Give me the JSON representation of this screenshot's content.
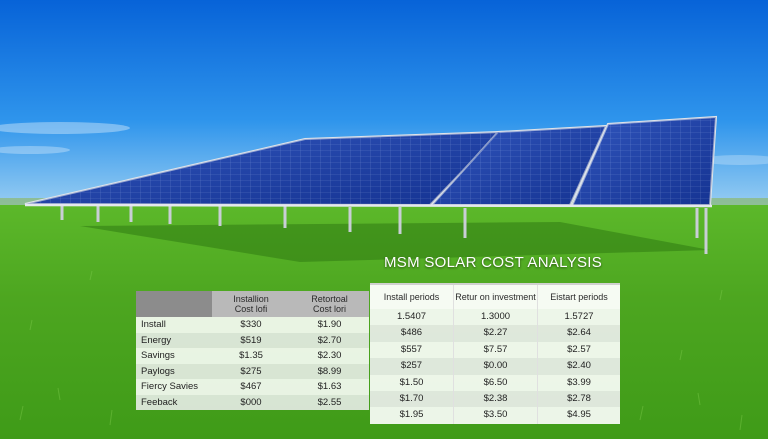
{
  "title": "MSM SOLAR COST ANALYSIS",
  "table_left": {
    "headers": [
      "",
      "Installion\nCost lofi",
      "Retortoal\nCost lori"
    ],
    "rows": [
      [
        "Install",
        "$330",
        "$1.90"
      ],
      [
        "Energy",
        "$519",
        "$2.70"
      ],
      [
        "Savings",
        "$1.35",
        "$2.30"
      ],
      [
        "Paylogs",
        "$275",
        "$8.99"
      ],
      [
        "Fiercy Savies",
        "$467",
        "$1.63"
      ],
      [
        "Feeback",
        "$000",
        "$2.55"
      ]
    ]
  },
  "table_right": {
    "headers": [
      "Install periods",
      "Retur on investment",
      "Eistart periods"
    ],
    "rows": [
      [
        "1.5407",
        "1.3000",
        "1.5727"
      ],
      [
        "$486",
        "$2.27",
        "$2.64"
      ],
      [
        "$557",
        "$7.57",
        "$2.57"
      ],
      [
        "$257",
        "$0.00",
        "$2.40"
      ],
      [
        "$1.50",
        "$6.50",
        "$3.99"
      ],
      [
        "$1.70",
        "$2.38",
        "$2.78"
      ],
      [
        "$1.95",
        "$3.50",
        "$4.95"
      ]
    ]
  },
  "colors": {
    "sky_top": "#0a6fe0",
    "sky_bottom": "#7cc4f2",
    "grass": "#4aa81e",
    "panel": "#1a3fa8",
    "frame": "#d8dde4"
  }
}
